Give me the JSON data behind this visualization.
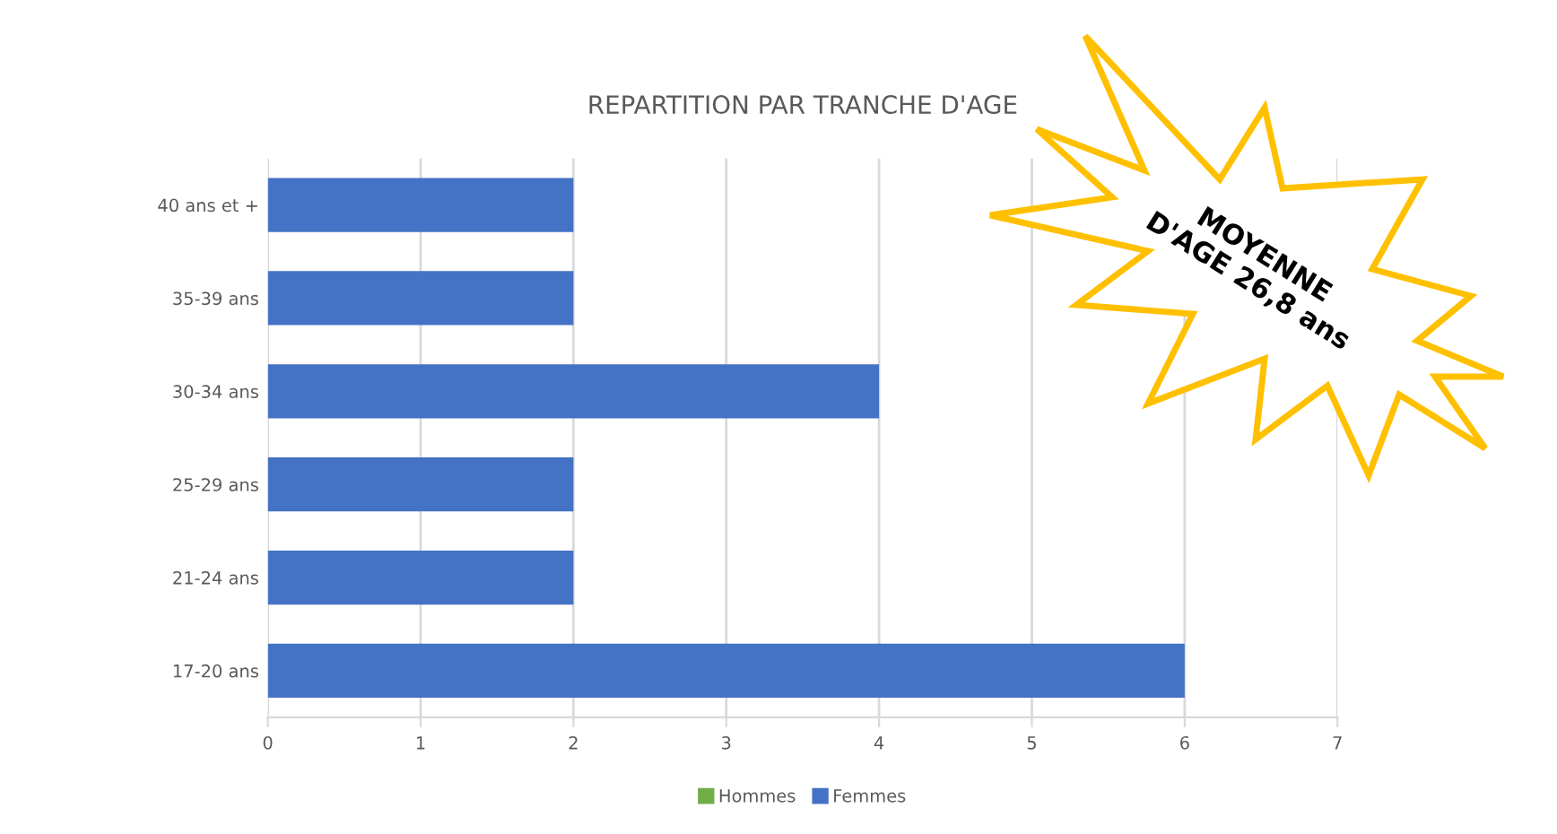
{
  "chart_data": {
    "type": "bar",
    "orientation": "horizontal",
    "title": "REPARTITION PAR TRANCHE D'AGE",
    "categories": [
      "40 ans et +",
      "35-39 ans",
      "30-34 ans",
      "25-29 ans",
      "21-24 ans",
      "17-20 ans"
    ],
    "series": [
      {
        "name": "Hommes",
        "color": "#70ad47",
        "values": [
          null,
          null,
          null,
          null,
          null,
          null
        ]
      },
      {
        "name": "Femmes",
        "color": "#4472c4",
        "values": [
          2,
          2,
          4,
          2,
          2,
          6
        ]
      }
    ],
    "xlim": [
      0,
      7
    ],
    "xticks": [
      0,
      1,
      2,
      3,
      4,
      5,
      6,
      7
    ],
    "grid": "x",
    "legend": "bottom",
    "annotations": [
      "MOYENNE\nD'AGE 26,8 ans"
    ]
  }
}
